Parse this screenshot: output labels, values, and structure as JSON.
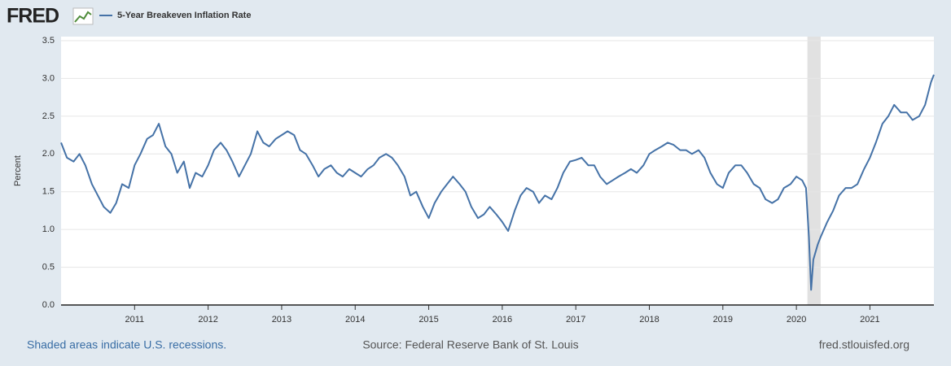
{
  "header": {
    "logo": "FRED"
  },
  "chart_data": {
    "type": "line",
    "ylabel": "Percent",
    "x": [
      2010.0,
      2010.08,
      2010.17,
      2010.25,
      2010.33,
      2010.42,
      2010.5,
      2010.58,
      2010.67,
      2010.75,
      2010.83,
      2010.92,
      2011.0,
      2011.08,
      2011.17,
      2011.25,
      2011.33,
      2011.42,
      2011.5,
      2011.58,
      2011.67,
      2011.75,
      2011.83,
      2011.92,
      2012.0,
      2012.08,
      2012.17,
      2012.25,
      2012.33,
      2012.42,
      2012.5,
      2012.58,
      2012.67,
      2012.75,
      2012.83,
      2012.92,
      2013.0,
      2013.08,
      2013.17,
      2013.25,
      2013.33,
      2013.42,
      2013.5,
      2013.58,
      2013.67,
      2013.75,
      2013.83,
      2013.92,
      2014.0,
      2014.08,
      2014.17,
      2014.25,
      2014.33,
      2014.42,
      2014.5,
      2014.58,
      2014.67,
      2014.75,
      2014.83,
      2014.92,
      2015.0,
      2015.08,
      2015.17,
      2015.25,
      2015.33,
      2015.42,
      2015.5,
      2015.58,
      2015.67,
      2015.75,
      2015.83,
      2015.92,
      2016.0,
      2016.08,
      2016.17,
      2016.25,
      2016.33,
      2016.42,
      2016.5,
      2016.58,
      2016.67,
      2016.75,
      2016.83,
      2016.92,
      2017.0,
      2017.08,
      2017.17,
      2017.25,
      2017.33,
      2017.42,
      2017.5,
      2017.58,
      2017.67,
      2017.75,
      2017.83,
      2017.92,
      2018.0,
      2018.08,
      2018.17,
      2018.25,
      2018.33,
      2018.42,
      2018.5,
      2018.58,
      2018.67,
      2018.75,
      2018.83,
      2018.92,
      2019.0,
      2019.08,
      2019.17,
      2019.25,
      2019.33,
      2019.42,
      2019.5,
      2019.58,
      2019.67,
      2019.75,
      2019.83,
      2019.92,
      2020.0,
      2020.08,
      2020.13,
      2020.17,
      2020.2,
      2020.23,
      2020.29,
      2020.33,
      2020.42,
      2020.5,
      2020.58,
      2020.67,
      2020.75,
      2020.83,
      2020.92,
      2021.0,
      2021.08,
      2021.17,
      2021.25,
      2021.33,
      2021.42,
      2021.5,
      2021.58,
      2021.67,
      2021.75,
      2021.83,
      2021.87
    ],
    "series": [
      {
        "name": "5-Year Breakeven Inflation Rate",
        "color": "#4572a7",
        "values": [
          2.15,
          1.95,
          1.9,
          2.0,
          1.85,
          1.6,
          1.45,
          1.3,
          1.22,
          1.35,
          1.6,
          1.55,
          1.85,
          2.0,
          2.2,
          2.25,
          2.4,
          2.1,
          2.0,
          1.75,
          1.9,
          1.55,
          1.75,
          1.7,
          1.85,
          2.05,
          2.15,
          2.05,
          1.9,
          1.7,
          1.85,
          2.0,
          2.3,
          2.15,
          2.1,
          2.2,
          2.25,
          2.3,
          2.25,
          2.05,
          2.0,
          1.85,
          1.7,
          1.8,
          1.85,
          1.75,
          1.7,
          1.8,
          1.75,
          1.7,
          1.8,
          1.85,
          1.95,
          2.0,
          1.95,
          1.85,
          1.7,
          1.45,
          1.5,
          1.3,
          1.15,
          1.35,
          1.5,
          1.6,
          1.7,
          1.6,
          1.5,
          1.3,
          1.15,
          1.2,
          1.3,
          1.2,
          1.1,
          0.98,
          1.25,
          1.45,
          1.55,
          1.5,
          1.35,
          1.45,
          1.4,
          1.55,
          1.75,
          1.9,
          1.92,
          1.95,
          1.85,
          1.85,
          1.7,
          1.6,
          1.65,
          1.7,
          1.75,
          1.8,
          1.75,
          1.85,
          2.0,
          2.05,
          2.1,
          2.15,
          2.12,
          2.05,
          2.05,
          2.0,
          2.05,
          1.95,
          1.75,
          1.6,
          1.55,
          1.75,
          1.85,
          1.85,
          1.75,
          1.6,
          1.55,
          1.4,
          1.35,
          1.4,
          1.55,
          1.6,
          1.7,
          1.65,
          1.55,
          0.9,
          0.2,
          0.6,
          0.8,
          0.9,
          1.1,
          1.25,
          1.45,
          1.55,
          1.55,
          1.6,
          1.8,
          1.95,
          2.15,
          2.4,
          2.5,
          2.65,
          2.55,
          2.55,
          2.45,
          2.5,
          2.65,
          2.95,
          3.05
        ]
      }
    ],
    "recessions": [
      [
        2020.15,
        2020.33
      ]
    ],
    "xlim": [
      2010.0,
      2021.87
    ],
    "xticks": [
      2011,
      2012,
      2013,
      2014,
      2015,
      2016,
      2017,
      2018,
      2019,
      2020,
      2021
    ],
    "ylim": [
      0,
      3.5
    ],
    "yticks": [
      {
        "value": 0,
        "label": "0.0"
      },
      0.5,
      {
        "value": 1,
        "label": "1.0"
      },
      1.5,
      {
        "value": 2,
        "label": "2.0"
      },
      2.5,
      {
        "value": 3,
        "label": "3.0"
      },
      3.5
    ],
    "grid": true
  },
  "footer": {
    "note": "Shaded areas indicate U.S. recessions.",
    "source": "Source: Federal Reserve Bank of St. Louis",
    "url": "fred.stlouisfed.org"
  }
}
